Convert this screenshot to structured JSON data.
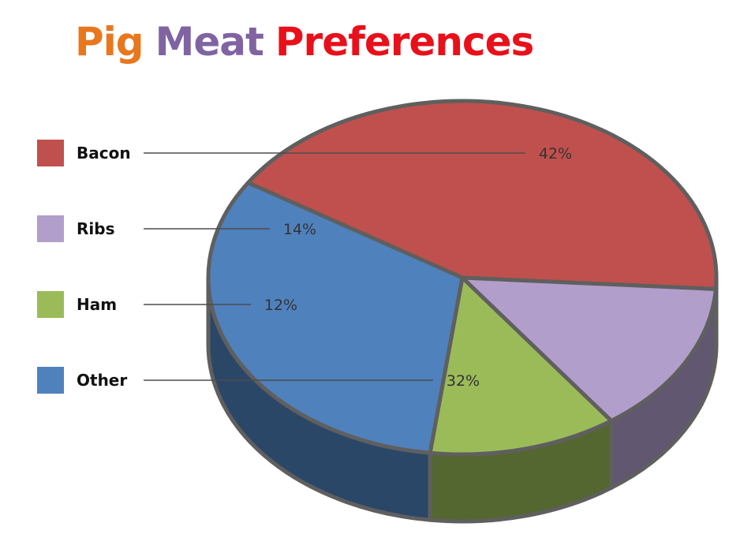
{
  "title_words": [
    {
      "text": "Pig",
      "color": "#e8771e"
    },
    {
      "text": "Meat",
      "color": "#8064a2"
    },
    {
      "text": "Preferences",
      "color": "#e8101a"
    }
  ],
  "chart_data": {
    "type": "pie",
    "title": "Pig Meat Preferences",
    "style": "3d",
    "legend_placement": "left",
    "slices": [
      {
        "label": "Bacon",
        "value": 42,
        "display": "42%",
        "color": "#c0504d"
      },
      {
        "label": "Ribs",
        "value": 14,
        "display": "14%",
        "color": "#b29ecb"
      },
      {
        "label": "Ham",
        "value": 12,
        "display": "12%",
        "color": "#9bbb59"
      },
      {
        "label": "Other",
        "value": 32,
        "display": "32%",
        "color": "#4f81bd"
      }
    ]
  }
}
